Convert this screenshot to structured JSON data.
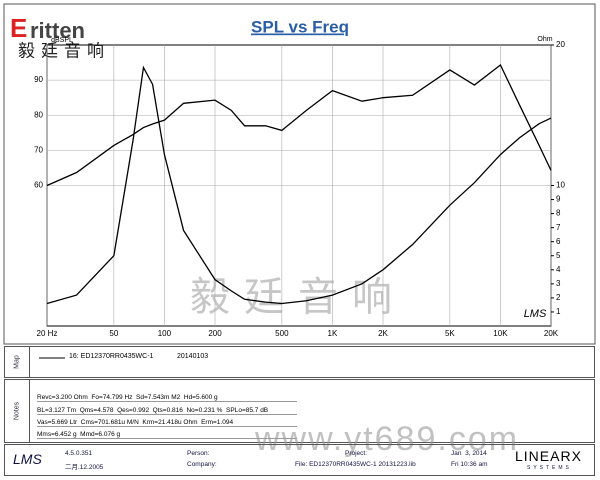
{
  "header": {
    "logo_mark": "E",
    "logo_text": "ritten",
    "brand_cn": "毅廷音响"
  },
  "chart_data": {
    "type": "line",
    "title": "SPL vs Freq",
    "ylabel": "dBSPL",
    "y2label": "Ohm",
    "xlog": true,
    "grid": true,
    "xlim": [
      20,
      20000
    ],
    "xticks": [
      {
        "value": 20,
        "label": "20 Hz"
      },
      50,
      100,
      200,
      500,
      {
        "value": 1000,
        "label": "1K"
      },
      {
        "value": 2000,
        "label": "2K"
      },
      {
        "value": 5000,
        "label": "5K"
      },
      {
        "value": 10000,
        "label": "10K"
      },
      {
        "value": 20000,
        "label": "20K"
      }
    ],
    "ylim": [
      20,
      100
    ],
    "yticks": [
      60,
      70,
      80,
      90
    ],
    "y2lim": [
      0,
      20
    ],
    "y2ticks": [
      1,
      2,
      3,
      4,
      5,
      6,
      7,
      8,
      9,
      10,
      20
    ],
    "x": [
      20,
      30,
      50,
      65,
      75,
      85,
      100,
      130,
      200,
      250,
      300,
      400,
      500,
      700,
      1000,
      1500,
      2000,
      3000,
      5000,
      7000,
      10000,
      13000,
      17000,
      20000
    ],
    "series": [
      {
        "name": "16: ED12370RR0435WC-1",
        "color": "#000000",
        "values": [
          60,
          63.7,
          71.4,
          74.5,
          76.5,
          77.5,
          78.6,
          83.4,
          84.3,
          81.4,
          77,
          77,
          75.7,
          81.4,
          87,
          84,
          85,
          85.7,
          92.9,
          88.6,
          94.3,
          82.9,
          71.4,
          64.3
        ]
      },
      {
        "color": "#000000",
        "axis": "y2",
        "values": [
          1.6,
          2.2,
          5,
          13.2,
          18.4,
          17.2,
          12.2,
          6.8,
          3.3,
          2.5,
          1.9,
          1.7,
          1.6,
          1.8,
          2.2,
          3.0,
          4,
          5.8,
          8.6,
          10.2,
          12.2,
          13.4,
          14.4,
          14.8
        ]
      }
    ],
    "legend_date": "20140103",
    "mark": "LMS"
  },
  "watermark": {
    "cn": "毅廷音响",
    "url": "www.yt689.com"
  },
  "map_label": "Map",
  "notes": {
    "label": "Notes",
    "lines": [
      "Revc=3.200 Ohm  Fo=74.799 Hz  Sd=7.543m M2  Hd=5.600 g",
      "BL=3.127 Tm  Qms=4.578  Qes=0.992  Qts=0.816  No=0.231 %  SPLo=85.7 dB",
      "Vas=5.669 Ltr  Cms=701.681u M/N  Krm=21.418u Ohm  Erm=1.094",
      "Mms=6.452 g  Mmd=6.076 g"
    ]
  },
  "footer": {
    "app": "LMS",
    "version": "4.5.0.351",
    "build_date": "二月.12.2005",
    "person": "Person:",
    "company": "Company:",
    "project": "Project:",
    "file": "File: ED12370RR0435WC-1 20131223.lib",
    "date": "Jan  3, 2014",
    "time": "Fri 10:36 am",
    "brand": "LINEARX",
    "brand_sub": "SYSTEMS"
  }
}
